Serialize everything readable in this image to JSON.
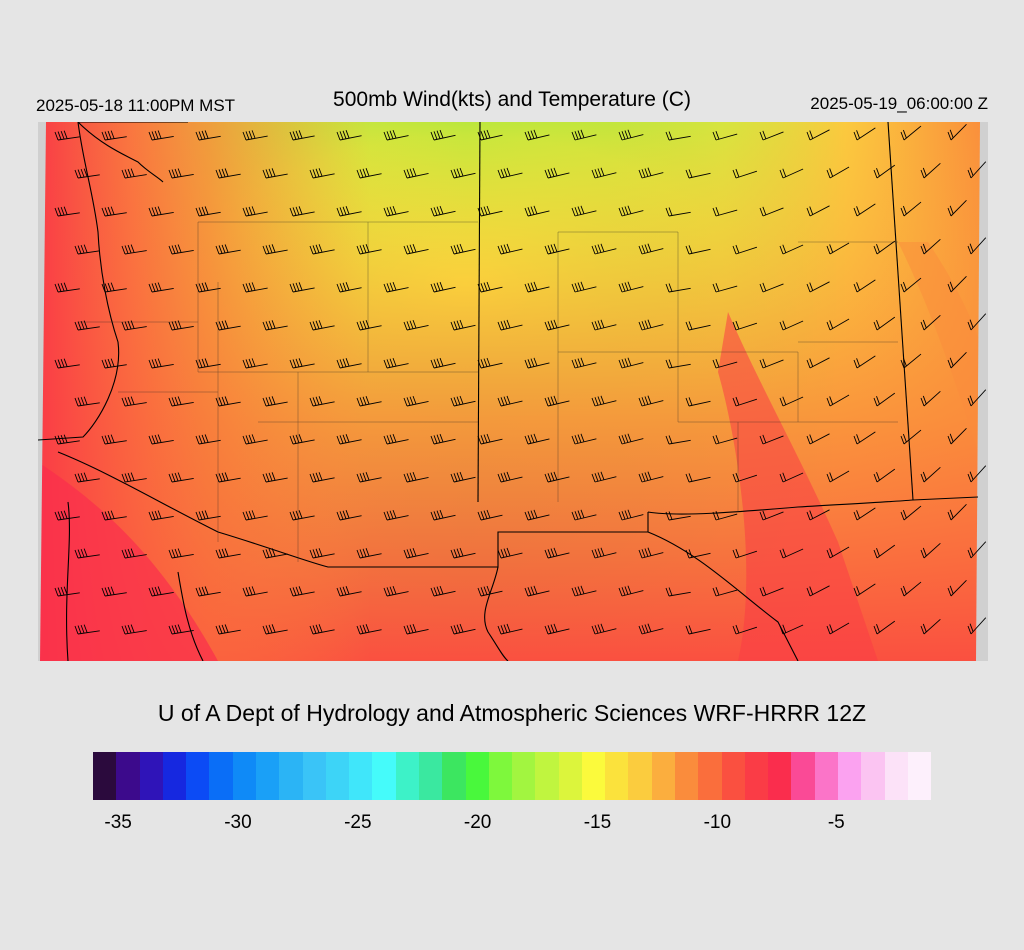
{
  "header": {
    "local_time": "2025-05-18 11:00PM MST",
    "title": "500mb Wind(kts) and Temperature (C)",
    "utc_time": "2025-05-19_06:00:00 Z"
  },
  "credit": "U of A Dept of Hydrology and Atmospheric Sciences WRF-HRRR 12Z",
  "legend": {
    "colors": [
      "#2b0a3d",
      "#3c0a8c",
      "#2f14b8",
      "#1628e0",
      "#0c4bf5",
      "#0a6ef7",
      "#0f8af7",
      "#1aa0f7",
      "#2bb4f5",
      "#3ac4f7",
      "#3dd4f7",
      "#40e6fa",
      "#45fbfa",
      "#3df2c8",
      "#3ae8a0",
      "#3ce660",
      "#49f83c",
      "#7ef83c",
      "#a2f540",
      "#c0f53f",
      "#dcf53c",
      "#fbfa3c",
      "#fbe23c",
      "#fbcc3e",
      "#fbae3e",
      "#fa8c3c",
      "#fa6e3c",
      "#fa5040",
      "#fa3c46",
      "#fa2d4d",
      "#fa4a96",
      "#fb74c8",
      "#fba2f0",
      "#fbc4f2",
      "#fce2f8",
      "#fdf0fc"
    ],
    "tick_labels": [
      {
        "text": "-35",
        "frac": 0.03
      },
      {
        "text": "-30",
        "frac": 0.173
      },
      {
        "text": "-25",
        "frac": 0.316
      },
      {
        "text": "-20",
        "frac": 0.459
      },
      {
        "text": "-15",
        "frac": 0.602
      },
      {
        "text": "-10",
        "frac": 0.745
      },
      {
        "text": "-5",
        "frac": 0.887
      }
    ]
  }
}
